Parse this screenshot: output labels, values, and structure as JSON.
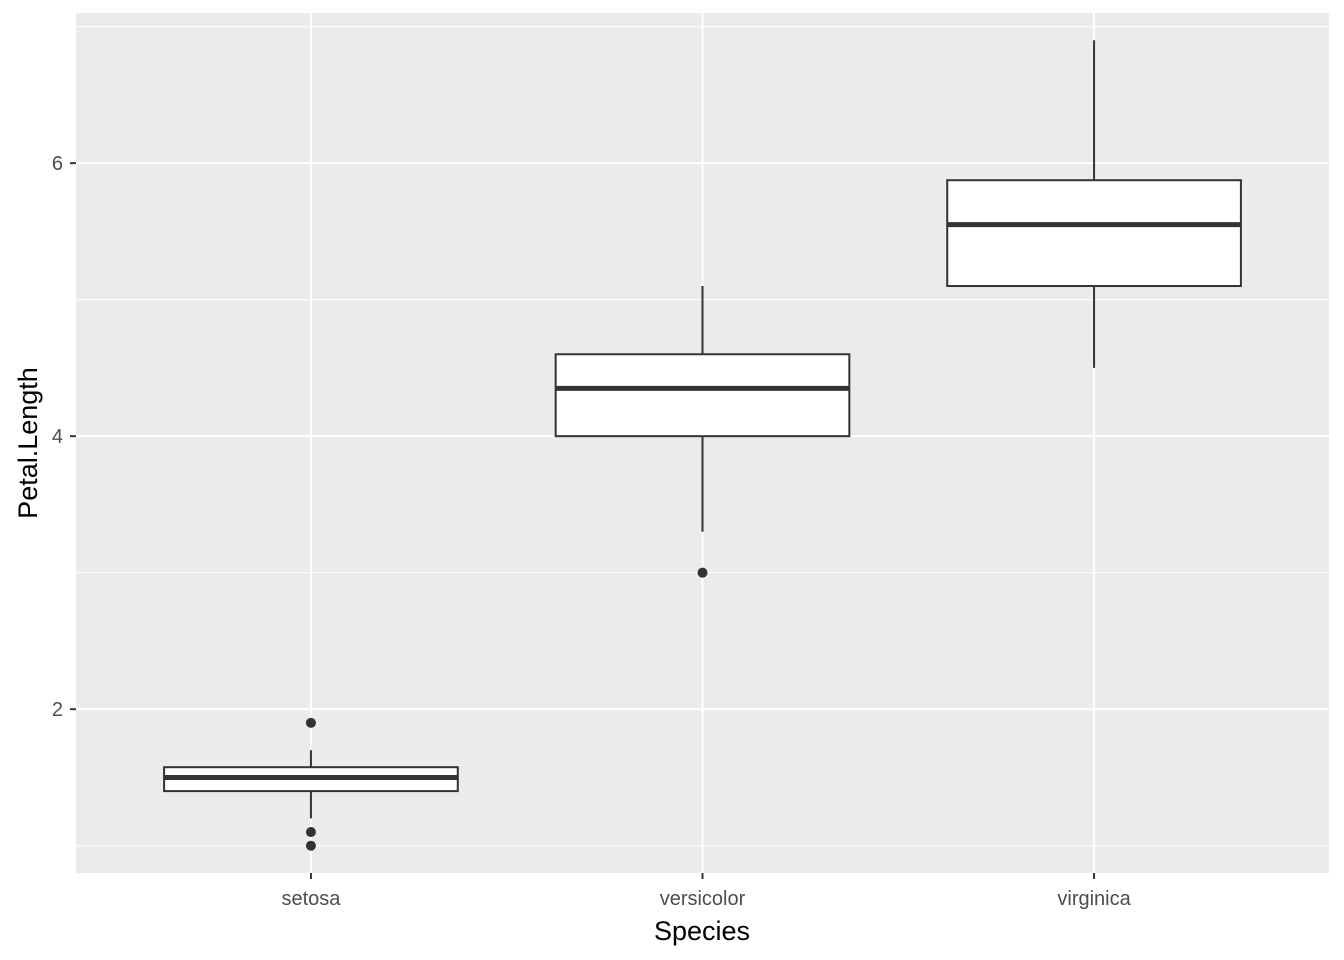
{
  "chart_data": {
    "type": "boxplot",
    "title": "",
    "xlabel": "Species",
    "ylabel": "Petal.Length",
    "categories": [
      "setosa",
      "versicolor",
      "virginica"
    ],
    "ylim": [
      0.8,
      7.1
    ],
    "y_ticks": [
      2,
      4,
      6
    ],
    "y_tick_labels": [
      "2",
      "4",
      "6"
    ],
    "grid": true,
    "legend": "none",
    "boxes": [
      {
        "category": "setosa",
        "whisker_low": 1.2,
        "q1": 1.4,
        "median": 1.5,
        "q3": 1.575,
        "whisker_high": 1.7,
        "outliers": [
          1.9,
          1.1,
          1.0
        ]
      },
      {
        "category": "versicolor",
        "whisker_low": 3.3,
        "q1": 4.0,
        "median": 4.35,
        "q3": 4.6,
        "whisker_high": 5.1,
        "outliers": [
          3.0
        ]
      },
      {
        "category": "virginica",
        "whisker_low": 4.5,
        "q1": 5.1,
        "median": 5.55,
        "q3": 5.875,
        "whisker_high": 6.9,
        "outliers": []
      }
    ],
    "colors": {
      "panel_background": "#ebebeb",
      "grid_major": "#ffffff",
      "grid_minor": "#f5f5f5",
      "box_fill": "#ffffff",
      "box_stroke": "#333333",
      "tick_text": "#4d4d4d",
      "tick_mark": "#333333",
      "axis_title": "#000000"
    }
  }
}
